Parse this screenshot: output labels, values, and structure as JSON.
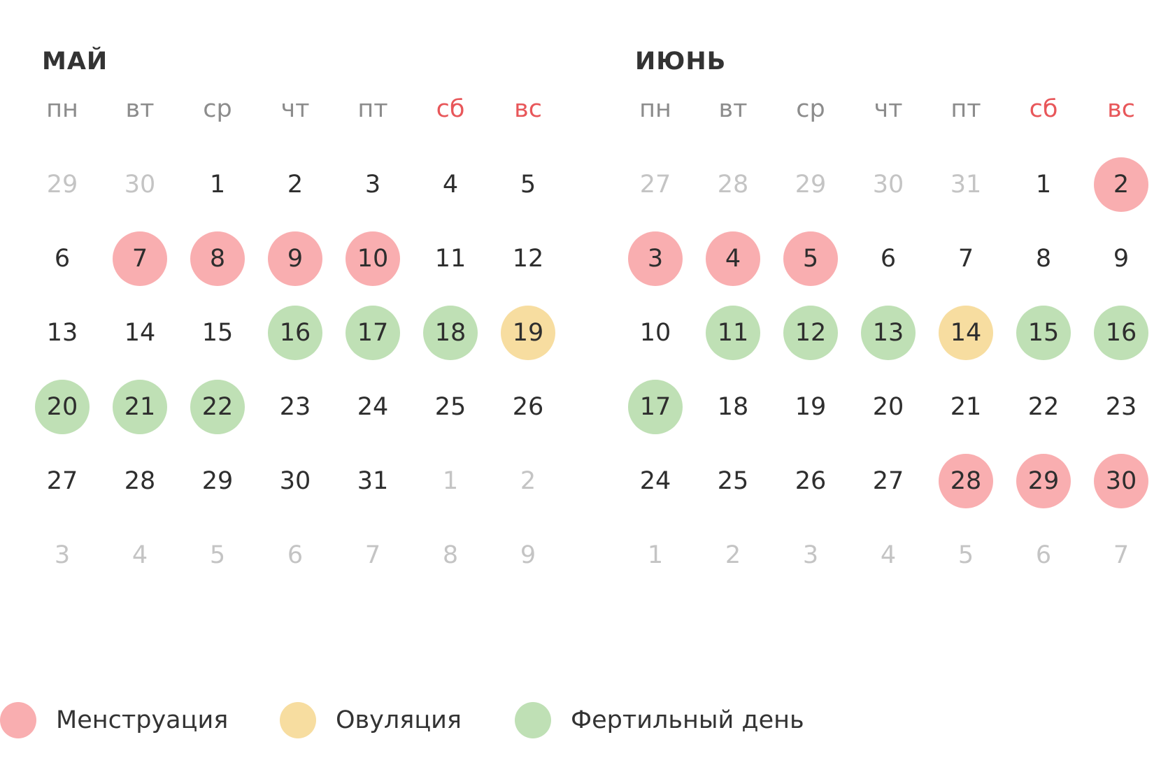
{
  "colors": {
    "menstruation": "#f9aeb0",
    "ovulation": "#f7dda0",
    "fertile": "#bfe0b5",
    "weekend_text": "#e8575a",
    "weekday_text": "#8c8c8c",
    "other_month_text": "#c4c4c4"
  },
  "weekdays": [
    "пн",
    "вт",
    "ср",
    "чт",
    "пт",
    "сб",
    "вс"
  ],
  "weekend_indices": [
    5,
    6
  ],
  "months": [
    {
      "title": "МАЙ",
      "weeks": [
        [
          {
            "d": "29",
            "o": true
          },
          {
            "d": "30",
            "o": true
          },
          {
            "d": "1"
          },
          {
            "d": "2"
          },
          {
            "d": "3"
          },
          {
            "d": "4"
          },
          {
            "d": "5"
          }
        ],
        [
          {
            "d": "6"
          },
          {
            "d": "7",
            "t": "menstruation"
          },
          {
            "d": "8",
            "t": "menstruation"
          },
          {
            "d": "9",
            "t": "menstruation"
          },
          {
            "d": "10",
            "t": "menstruation"
          },
          {
            "d": "11"
          },
          {
            "d": "12"
          }
        ],
        [
          {
            "d": "13"
          },
          {
            "d": "14"
          },
          {
            "d": "15"
          },
          {
            "d": "16",
            "t": "fertile"
          },
          {
            "d": "17",
            "t": "fertile"
          },
          {
            "d": "18",
            "t": "fertile"
          },
          {
            "d": "19",
            "t": "ovulation"
          }
        ],
        [
          {
            "d": "20",
            "t": "fertile"
          },
          {
            "d": "21",
            "t": "fertile"
          },
          {
            "d": "22",
            "t": "fertile"
          },
          {
            "d": "23"
          },
          {
            "d": "24"
          },
          {
            "d": "25"
          },
          {
            "d": "26"
          }
        ],
        [
          {
            "d": "27"
          },
          {
            "d": "28"
          },
          {
            "d": "29"
          },
          {
            "d": "30"
          },
          {
            "d": "31"
          },
          {
            "d": "1",
            "o": true
          },
          {
            "d": "2",
            "o": true
          }
        ],
        [
          {
            "d": "3",
            "o": true
          },
          {
            "d": "4",
            "o": true
          },
          {
            "d": "5",
            "o": true
          },
          {
            "d": "6",
            "o": true
          },
          {
            "d": "7",
            "o": true
          },
          {
            "d": "8",
            "o": true
          },
          {
            "d": "9",
            "o": true
          }
        ]
      ]
    },
    {
      "title": "ИЮНЬ",
      "weeks": [
        [
          {
            "d": "27",
            "o": true
          },
          {
            "d": "28",
            "o": true
          },
          {
            "d": "29",
            "o": true
          },
          {
            "d": "30",
            "o": true
          },
          {
            "d": "31",
            "o": true
          },
          {
            "d": "1"
          },
          {
            "d": "2",
            "t": "menstruation"
          }
        ],
        [
          {
            "d": "3",
            "t": "menstruation"
          },
          {
            "d": "4",
            "t": "menstruation"
          },
          {
            "d": "5",
            "t": "menstruation"
          },
          {
            "d": "6"
          },
          {
            "d": "7"
          },
          {
            "d": "8"
          },
          {
            "d": "9"
          }
        ],
        [
          {
            "d": "10"
          },
          {
            "d": "11",
            "t": "fertile"
          },
          {
            "d": "12",
            "t": "fertile"
          },
          {
            "d": "13",
            "t": "fertile"
          },
          {
            "d": "14",
            "t": "ovulation"
          },
          {
            "d": "15",
            "t": "fertile"
          },
          {
            "d": "16",
            "t": "fertile"
          }
        ],
        [
          {
            "d": "17",
            "t": "fertile"
          },
          {
            "d": "18"
          },
          {
            "d": "19"
          },
          {
            "d": "20"
          },
          {
            "d": "21"
          },
          {
            "d": "22"
          },
          {
            "d": "23"
          }
        ],
        [
          {
            "d": "24"
          },
          {
            "d": "25"
          },
          {
            "d": "26"
          },
          {
            "d": "27"
          },
          {
            "d": "28",
            "t": "menstruation"
          },
          {
            "d": "29",
            "t": "menstruation"
          },
          {
            "d": "30",
            "t": "menstruation"
          }
        ],
        [
          {
            "d": "1",
            "o": true
          },
          {
            "d": "2",
            "o": true
          },
          {
            "d": "3",
            "o": true
          },
          {
            "d": "4",
            "o": true
          },
          {
            "d": "5",
            "o": true
          },
          {
            "d": "6",
            "o": true
          },
          {
            "d": "7",
            "o": true
          }
        ]
      ]
    }
  ],
  "legend": [
    {
      "key": "menstruation",
      "label": "Менструация"
    },
    {
      "key": "ovulation",
      "label": "Овуляция"
    },
    {
      "key": "fertile",
      "label": "Фертильный день"
    }
  ]
}
